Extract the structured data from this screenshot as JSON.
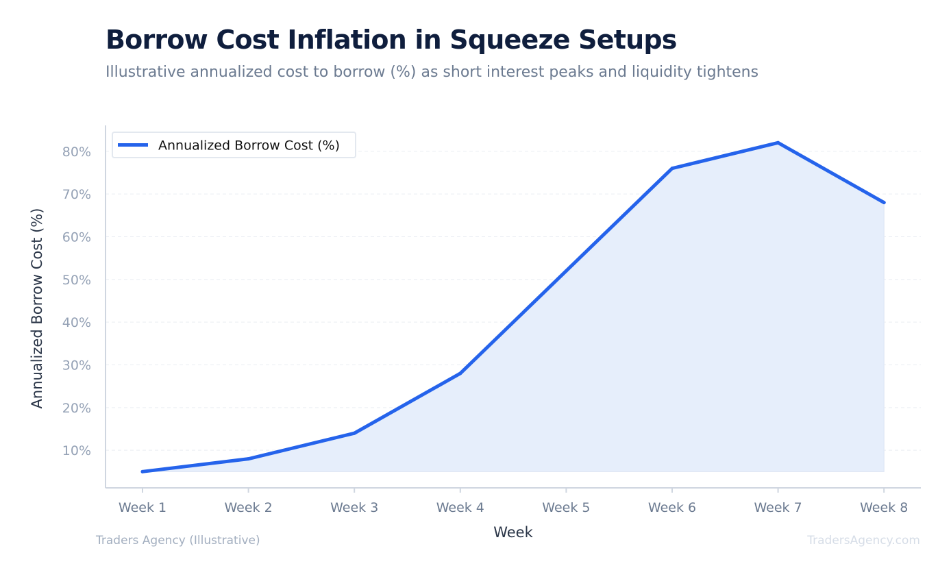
{
  "header": {
    "title": "Borrow Cost Inflation in Squeeze Setups",
    "subtitle": "Illustrative annualized cost to borrow (%) as short interest peaks and liquidity tightens"
  },
  "footer": {
    "source": "Traders Agency (Illustrative)",
    "watermark": "TradersAgency.com"
  },
  "colors": {
    "line": "#2563eb",
    "fill": "#e6eefb",
    "axis": "#cfd6e0",
    "grid": "#e9edf2",
    "tick_text": "#94a1b5",
    "xtick_text": "#6b7a90",
    "axis_title": "#2a3547"
  },
  "chart_data": {
    "type": "area",
    "categories": [
      "Week 1",
      "Week 2",
      "Week 3",
      "Week 4",
      "Week 5",
      "Week 6",
      "Week 7",
      "Week 8"
    ],
    "series": [
      {
        "name": "Annualized Borrow Cost (%)",
        "values": [
          5,
          8,
          14,
          28,
          52,
          76,
          82,
          68
        ]
      }
    ],
    "xlabel": "Week",
    "ylabel": "Annualized Borrow Cost (%)",
    "ylim": [
      0,
      85
    ],
    "yticks": [
      10,
      20,
      30,
      40,
      50,
      60,
      70,
      80
    ],
    "ytick_labels": [
      "10%",
      "20%",
      "30%",
      "40%",
      "50%",
      "60%",
      "70%",
      "80%"
    ],
    "grid": true,
    "legend": "top-left"
  }
}
